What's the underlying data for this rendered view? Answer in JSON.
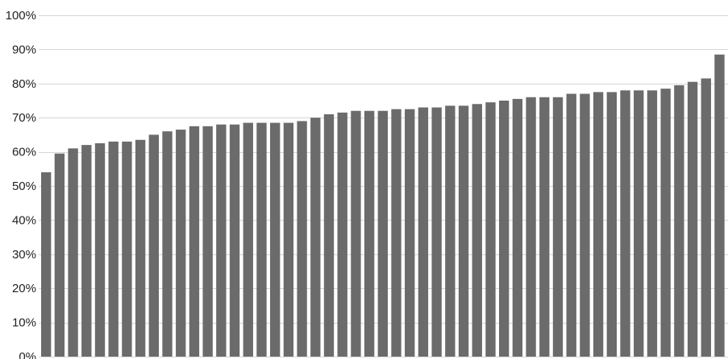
{
  "chart_data": {
    "type": "bar",
    "title": "",
    "xlabel": "",
    "ylabel": "",
    "ylim": [
      0,
      100
    ],
    "y_ticks": [
      "0%",
      "10%",
      "20%",
      "30%",
      "40%",
      "50%",
      "60%",
      "70%",
      "80%",
      "90%",
      "100%"
    ],
    "y_tick_values": [
      0,
      10,
      20,
      30,
      40,
      50,
      60,
      70,
      80,
      90,
      100
    ],
    "grid": true,
    "legend": "none",
    "bar_color": "#6b6b6b",
    "grid_color": "#d6d6d6",
    "values": [
      54,
      59.5,
      61,
      62,
      62.5,
      63,
      63,
      63.5,
      65,
      66,
      66.5,
      67.5,
      67.5,
      68,
      68,
      68.5,
      68.5,
      68.5,
      68.5,
      69,
      70,
      71,
      71.5,
      72,
      72,
      72,
      72.5,
      72.5,
      73,
      73,
      73.5,
      73.5,
      74,
      74.5,
      75,
      75.5,
      76,
      76,
      76,
      77,
      77,
      77.5,
      77.5,
      78,
      78,
      78,
      78.5,
      79.5,
      80.5,
      81.5,
      88.5
    ]
  }
}
